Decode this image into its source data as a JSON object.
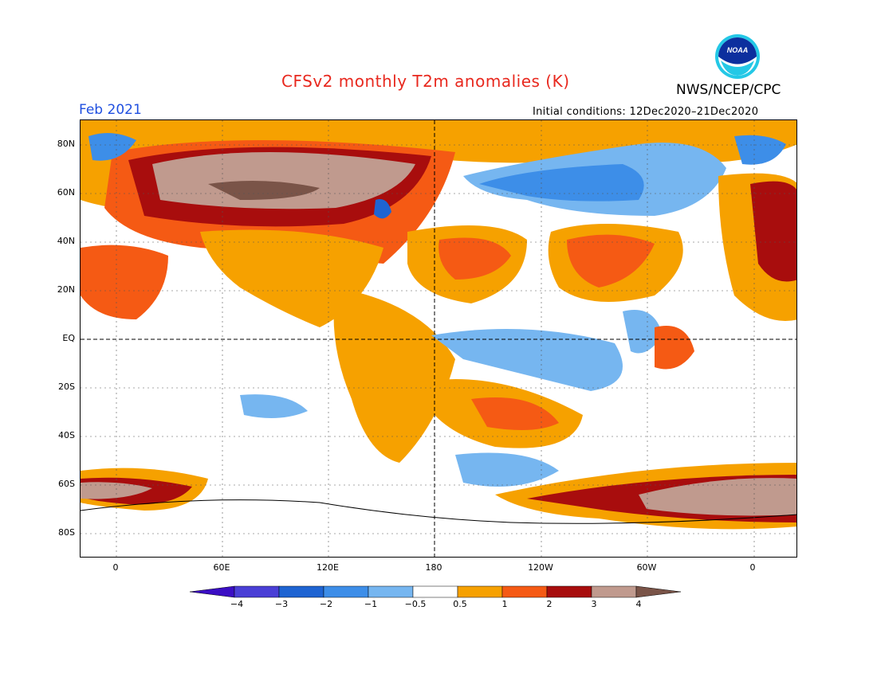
{
  "header": {
    "title": "CFSv2 monthly T2m anomalies (K)",
    "agency": "NWS/NCEP/CPC",
    "valid_month": "Feb 2021",
    "initial_conditions": "Initial conditions: 12Dec2020–21Dec2020",
    "logo_text": "NOAA"
  },
  "map": {
    "lat_labels": [
      "80N",
      "60N",
      "40N",
      "20N",
      "EQ",
      "20S",
      "40S",
      "60S",
      "80S"
    ],
    "lon_labels": [
      "0",
      "60E",
      "120E",
      "180",
      "120W",
      "60W",
      "0"
    ]
  },
  "colorbar": {
    "labels": [
      "−4",
      "−3",
      "−2",
      "−1",
      "−0.5",
      "0.5",
      "1",
      "2",
      "3",
      "4"
    ],
    "colors": [
      "#3b0ec4",
      "#4a3fd6",
      "#1e64d2",
      "#3d8ee8",
      "#76b6f0",
      "#ffffff",
      "#f6a100",
      "#f55a14",
      "#a80d0d",
      "#c09a8e",
      "#7a5448"
    ]
  }
}
